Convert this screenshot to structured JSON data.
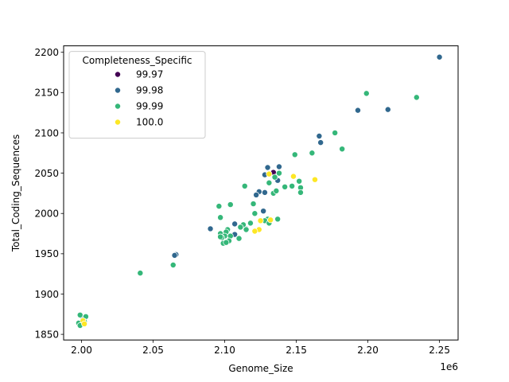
{
  "chart_data": {
    "type": "scatter",
    "title": "",
    "xlabel": "Genome_Size",
    "ylabel": "Total_Coding_Sequences",
    "x_offset_label": "1e6",
    "xlim": [
      1.9875,
      2.263
    ],
    "ylim": [
      1843,
      2208
    ],
    "x_ticks": [
      2.0,
      2.05,
      2.1,
      2.15,
      2.2,
      2.25
    ],
    "x_tick_labels": [
      "2.00",
      "2.05",
      "2.10",
      "2.15",
      "2.20",
      "2.25"
    ],
    "y_ticks": [
      1850,
      1900,
      1950,
      2000,
      2050,
      2100,
      2150,
      2200
    ],
    "y_tick_labels": [
      "1850",
      "1900",
      "1950",
      "2000",
      "2050",
      "2100",
      "2150",
      "2200"
    ],
    "grid": false,
    "legend": {
      "title": "Completeness_Specific",
      "placement": "top-left",
      "entries": [
        {
          "label": "99.97",
          "color": "#440154"
        },
        {
          "label": "99.98",
          "color": "#31688e"
        },
        {
          "label": "99.99",
          "color": "#35b779"
        },
        {
          "label": "100.0",
          "color": "#fde725"
        }
      ]
    },
    "series": [
      {
        "name": "99.97",
        "color": "#440154",
        "points": [
          [
            2.134,
            2051
          ]
        ]
      },
      {
        "name": "99.98",
        "color": "#31688e",
        "points": [
          [
            2.25,
            2194
          ],
          [
            2.214,
            2129
          ],
          [
            2.193,
            2128
          ],
          [
            2.166,
            2096
          ],
          [
            2.167,
            2088
          ],
          [
            2.138,
            2058
          ],
          [
            2.13,
            2057
          ],
          [
            2.128,
            2048
          ],
          [
            2.137,
            2041
          ],
          [
            2.124,
            2027
          ],
          [
            2.128,
            2026
          ],
          [
            2.122,
            2023
          ],
          [
            2.127,
            2003
          ],
          [
            2.107,
            1987
          ],
          [
            2.09,
            1981
          ],
          [
            2.107,
            1974
          ],
          [
            2.115,
            1981
          ],
          [
            2.066,
            1949
          ],
          [
            2.065,
            1948
          ],
          [
            2.002,
            1871
          ],
          [
            2.001,
            1869
          ]
        ]
      },
      {
        "name": "99.99",
        "color": "#35b779",
        "points": [
          [
            2.199,
            2149
          ],
          [
            2.234,
            2144
          ],
          [
            2.177,
            2100
          ],
          [
            2.182,
            2080
          ],
          [
            2.161,
            2075
          ],
          [
            2.149,
            2073
          ],
          [
            2.152,
            2040
          ],
          [
            2.147,
            2034
          ],
          [
            2.142,
            2033
          ],
          [
            2.153,
            2032
          ],
          [
            2.153,
            2026
          ],
          [
            2.134,
            2025
          ],
          [
            2.136,
            2028
          ],
          [
            2.138,
            2050
          ],
          [
            2.135,
            2045
          ],
          [
            2.131,
            2038
          ],
          [
            2.114,
            2034
          ],
          [
            2.104,
            2011
          ],
          [
            2.12,
            2012
          ],
          [
            2.096,
            2009
          ],
          [
            2.121,
            2000
          ],
          [
            2.097,
            1995
          ],
          [
            2.13,
            1993
          ],
          [
            2.137,
            1993
          ],
          [
            2.128,
            1991
          ],
          [
            2.131,
            1988
          ],
          [
            2.118,
            1988
          ],
          [
            2.113,
            1986
          ],
          [
            2.111,
            1983
          ],
          [
            2.115,
            1980
          ],
          [
            2.102,
            1980
          ],
          [
            2.101,
            1977
          ],
          [
            2.097,
            1975
          ],
          [
            2.1,
            1972
          ],
          [
            2.104,
            1972
          ],
          [
            2.098,
            1970
          ],
          [
            2.103,
            1966
          ],
          [
            2.11,
            1969
          ],
          [
            2.099,
            1963
          ],
          [
            2.101,
            1964
          ],
          [
            2.097,
            1971
          ],
          [
            2.041,
            1926
          ],
          [
            2.064,
            1936
          ],
          [
            1.999,
            1874
          ],
          [
            1.998,
            1864
          ],
          [
            1.999,
            1861
          ],
          [
            2.003,
            1872
          ],
          [
            2.002,
            1866
          ]
        ]
      },
      {
        "name": "100.0",
        "color": "#fde725",
        "points": [
          [
            2.163,
            2042
          ],
          [
            2.148,
            2046
          ],
          [
            2.131,
            2049
          ],
          [
            2.125,
            1991
          ],
          [
            2.132,
            1992
          ],
          [
            2.124,
            1980
          ],
          [
            2.121,
            1978
          ],
          [
            2.001,
            1867
          ],
          [
            2.002,
            1863
          ]
        ]
      }
    ]
  }
}
